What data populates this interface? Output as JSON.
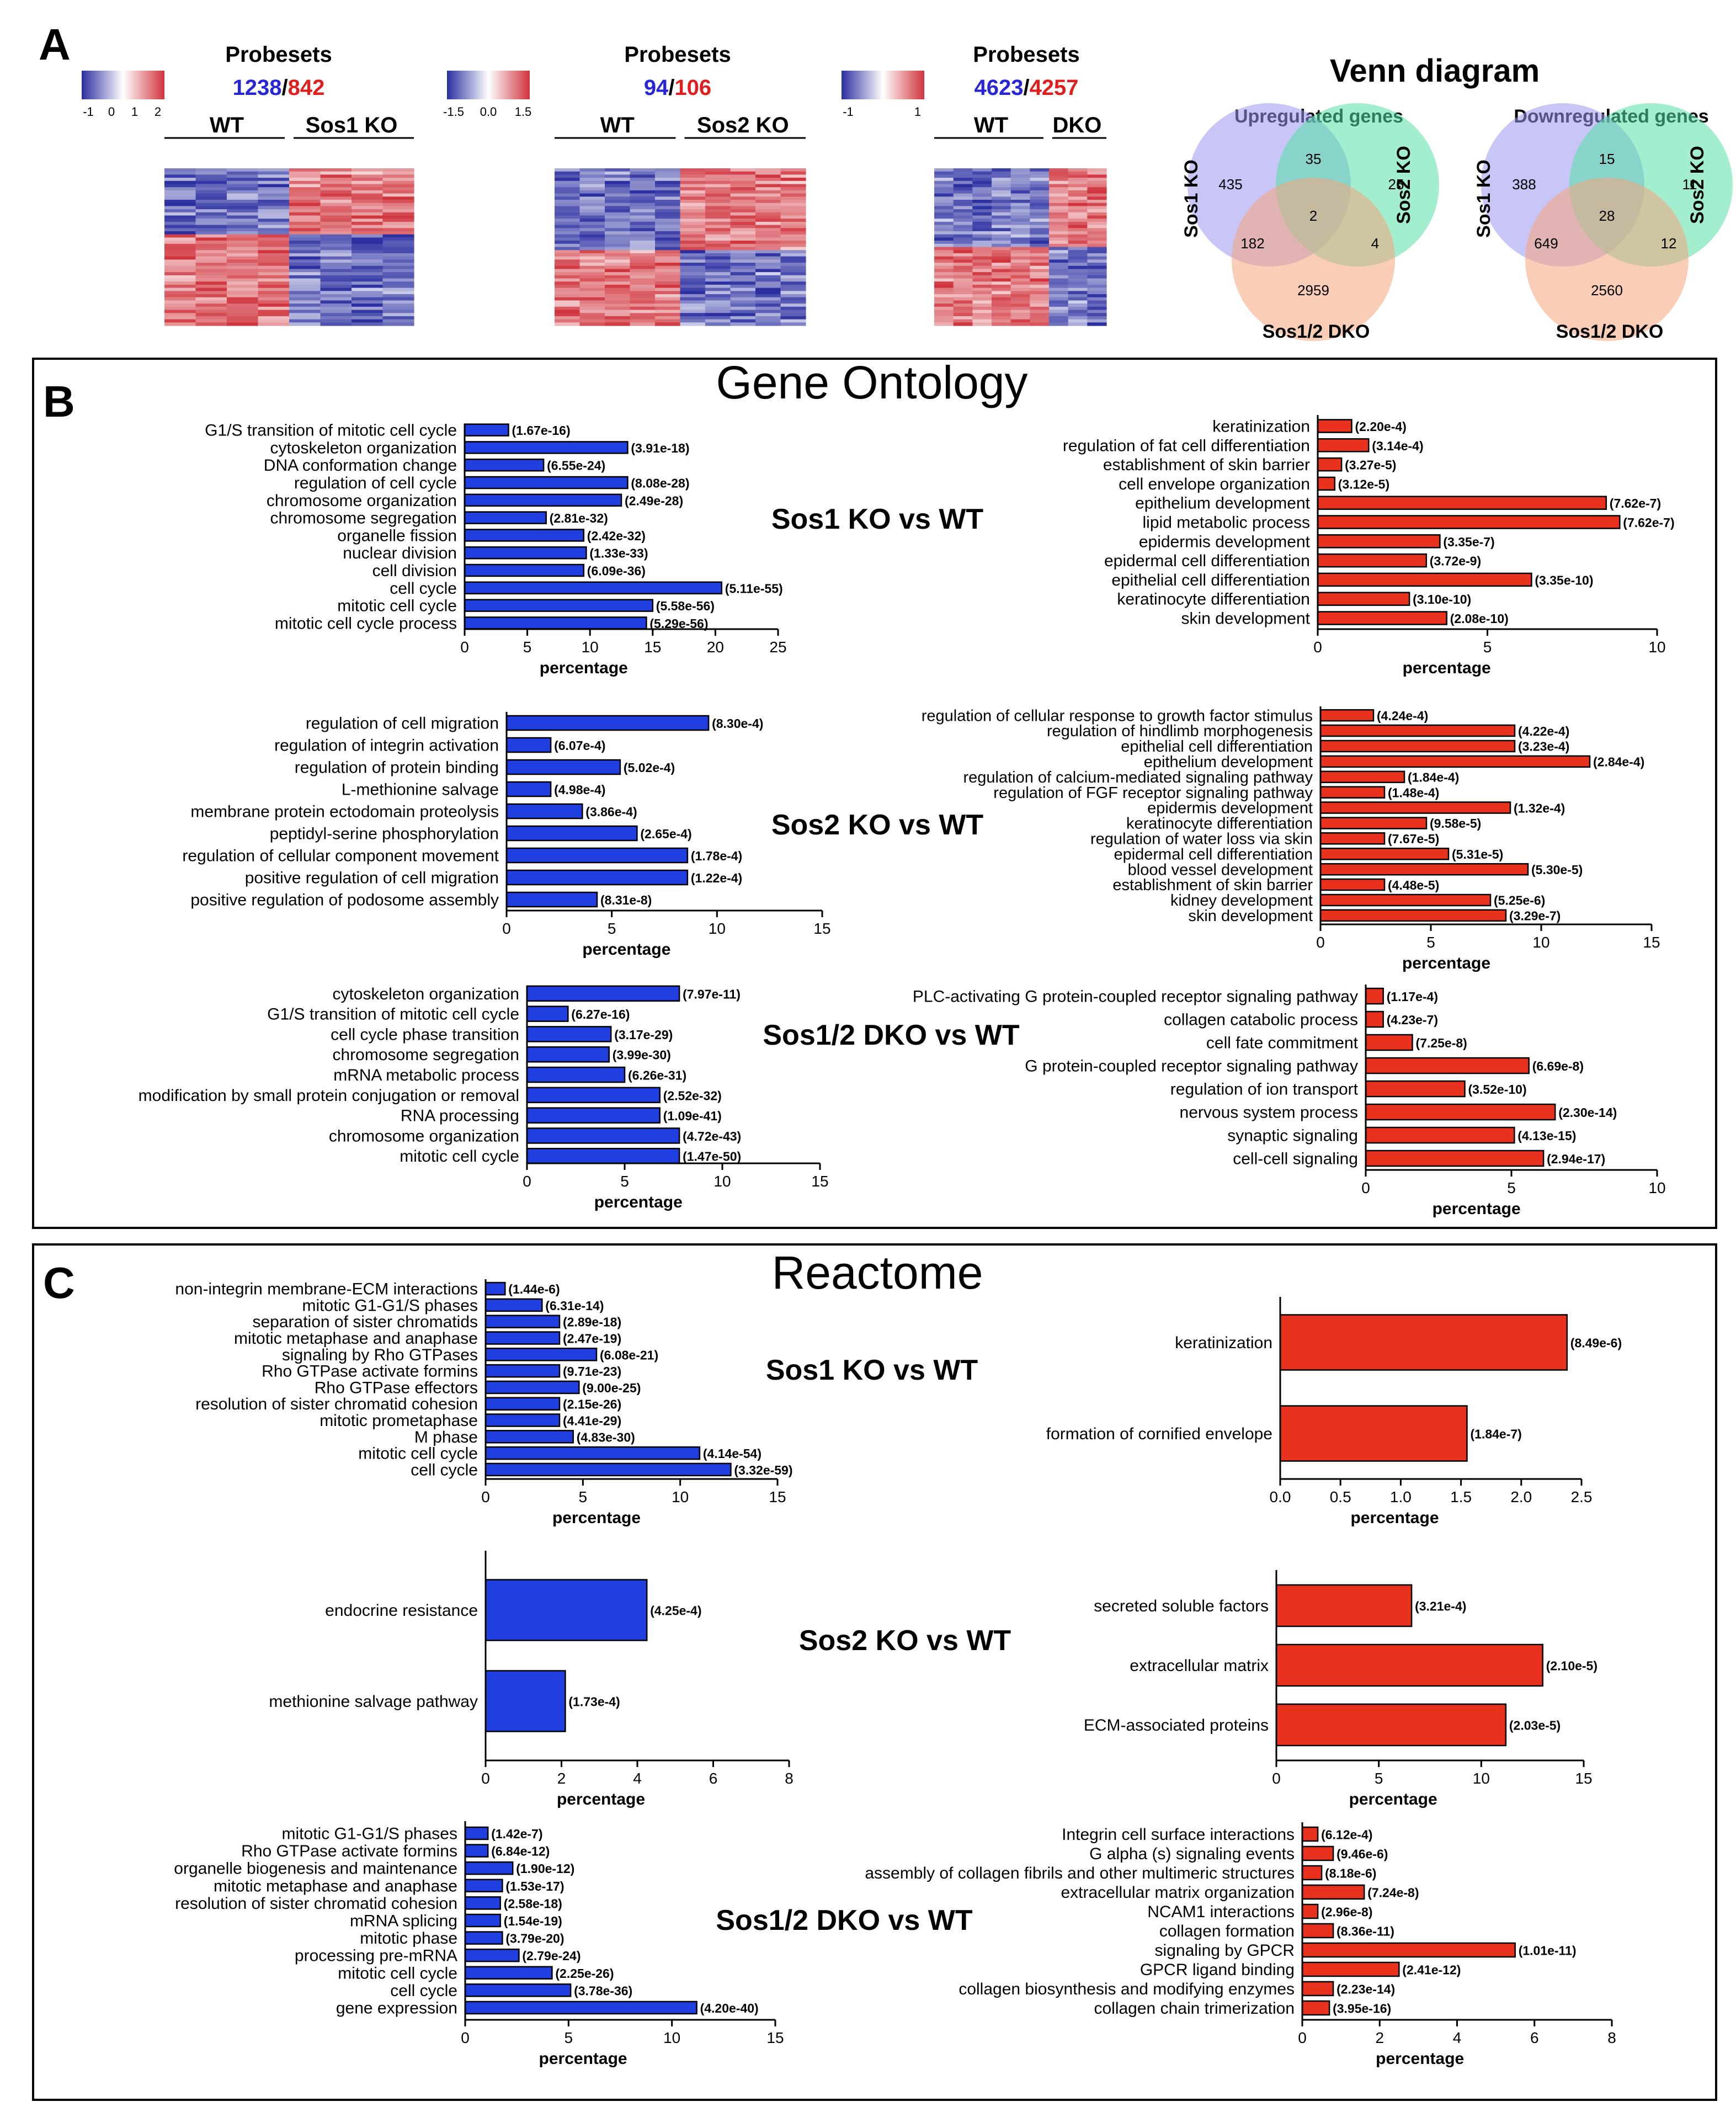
{
  "colors": {
    "blue_bar": "#1f3fe0",
    "red_bar": "#e8321e",
    "heat_blue": "#2b2fa0",
    "heat_red": "#d0343d",
    "venn_sos1": "#9b95f0",
    "venn_sos2": "#56e0a6",
    "venn_dko": "#f6a47c",
    "count_blue": "#2626d6",
    "count_red": "#e01e1e"
  },
  "panelA": {
    "letter": "A",
    "heatmaps": [
      {
        "title": "Probesets",
        "count_down": "1238",
        "sep": "/",
        "count_up": "842",
        "scale_ticks": [
          "-1",
          "0",
          "1",
          "2"
        ],
        "group_left": "WT",
        "group_right": "Sos1 KO",
        "split": 0.5,
        "top_fraction": 0.42
      },
      {
        "title": "Probesets",
        "count_down": "94",
        "sep": "/",
        "count_up": "106",
        "scale_ticks": [
          "-1.5",
          "0.0",
          "1.5"
        ],
        "group_left": "WT",
        "group_right": "Sos2 KO",
        "split": 0.5,
        "top_fraction": 0.52
      },
      {
        "title": "Probesets",
        "count_down": "4623",
        "sep": "/",
        "count_up": "4257",
        "scale_ticks": [
          "-1",
          "1"
        ],
        "group_left": "WT",
        "group_right": "DKO",
        "split": 0.66,
        "top_fraction": 0.5
      }
    ],
    "venn": {
      "title": "Venn diagram",
      "up": {
        "title": "Upregulated genes",
        "label_a": "Sos1 KO",
        "label_b": "Sos2 KO",
        "label_c": "Sos1/2 DKO",
        "a": "435",
        "ab": "35",
        "b": "25",
        "abc": "2",
        "ac": "182",
        "bc": "4",
        "c": "2959"
      },
      "down": {
        "title": "Downregulated genes",
        "label_a": "Sos1 KO",
        "label_b": "Sos2 KO",
        "label_c": "Sos1/2 DKO",
        "a": "388",
        "ab": "15",
        "b": "11",
        "abc": "28",
        "ac": "649",
        "bc": "12",
        "c": "2560"
      }
    }
  },
  "panelB": {
    "letter": "B",
    "title": "Gene Ontology",
    "rows": [
      {
        "label": "Sos1 KO vs WT"
      },
      {
        "label": "Sos2 KO vs WT"
      },
      {
        "label": "Sos1/2 DKO vs WT"
      }
    ]
  },
  "panelC": {
    "letter": "C",
    "title": "Reactome",
    "rows": [
      {
        "label": "Sos1 KO vs WT"
      },
      {
        "label": "Sos2 KO vs WT"
      },
      {
        "label": "Sos1/2 DKO vs WT"
      }
    ]
  },
  "chart_data": [
    {
      "id": "go_sos1_down",
      "type": "bar",
      "orientation": "horizontal",
      "xlabel": "percentage",
      "xlim": [
        0,
        25
      ],
      "xticks": [
        0,
        5,
        10,
        15,
        20,
        25
      ],
      "categories": [
        "G1/S transition of mitotic cell cycle",
        "cytoskeleton organization",
        "DNA conformation change",
        "regulation of cell cycle",
        "chromosome organization",
        "chromosome segregation",
        "organelle fission",
        "nuclear division",
        "cell division",
        "cell cycle",
        "mitotic cell cycle",
        "mitotic cell cycle process"
      ],
      "values": [
        3.5,
        13,
        6.3,
        13,
        12.5,
        6.5,
        9.5,
        9.7,
        9.5,
        20.5,
        15,
        14.5
      ],
      "annotations": [
        "(1.67e-16)",
        "(3.91e-18)",
        "(6.55e-24)",
        "(8.08e-28)",
        "(2.49e-28)",
        "(2.81e-32)",
        "(2.42e-32)",
        "(1.33e-33)",
        "(6.09e-36)",
        "(5.11e-55)",
        "(5.58e-56)",
        "(5.29e-56)"
      ]
    },
    {
      "id": "go_sos1_up",
      "type": "bar",
      "orientation": "horizontal",
      "xlabel": "percentage",
      "xlim": [
        0,
        10
      ],
      "xticks": [
        0,
        5,
        10
      ],
      "categories": [
        "keratinization",
        "regulation of fat cell differentiation",
        "establishment of skin barrier",
        "cell envelope organization",
        "epithelium development",
        "lipid metabolic process",
        "epidermis development",
        "epidermal cell differentiation",
        "epithelial cell differentiation",
        "keratinocyte differentiation",
        "skin development"
      ],
      "values": [
        1,
        1.5,
        0.7,
        0.5,
        8.5,
        8.9,
        3.6,
        3.2,
        6.3,
        2.7,
        3.8
      ],
      "annotations": [
        "(2.20e-4)",
        "(3.14e-4)",
        "(3.27e-5)",
        "(3.12e-5)",
        "(7.62e-7)",
        "(7.62e-7)",
        "(3.35e-7)",
        "(3.72e-9)",
        "(3.35e-10)",
        "(3.10e-10)",
        "(2.08e-10)"
      ]
    },
    {
      "id": "go_sos2_down",
      "type": "bar",
      "orientation": "horizontal",
      "xlabel": "percentage",
      "xlim": [
        0,
        15
      ],
      "xticks": [
        0,
        5,
        10,
        15
      ],
      "categories": [
        "regulation of cell migration",
        "regulation of integrin activation",
        "regulation of protein binding",
        "L-methionine salvage",
        "membrane protein ectodomain proteolysis",
        "peptidyl-serine phosphorylation",
        "regulation of cellular component movement",
        "positive regulation of cell migration",
        "positive regulation of podosome assembly"
      ],
      "values": [
        9.6,
        2.1,
        5.4,
        2.1,
        3.6,
        6.2,
        8.6,
        8.6,
        4.3
      ],
      "annotations": [
        "(8.30e-4)",
        "(6.07e-4)",
        "(5.02e-4)",
        "(4.98e-4)",
        "(3.86e-4)",
        "(2.65e-4)",
        "(1.78e-4)",
        "(1.22e-4)",
        "(8.31e-8)"
      ]
    },
    {
      "id": "go_sos2_up",
      "type": "bar",
      "orientation": "horizontal",
      "xlabel": "percentage",
      "xlim": [
        0,
        15
      ],
      "xticks": [
        0,
        5,
        10,
        15
      ],
      "categories": [
        "regulation of cellular response to growth factor stimulus",
        "regulation of hindlimb morphogenesis",
        "epithelial cell differentiation",
        "epithelium development",
        "regulation of calcium-mediated signaling pathway",
        "regulation of FGF receptor signaling pathway",
        "epidermis development",
        "keratinocyte differentiation",
        "regulation of water loss via skin",
        "epidermal cell differentiation",
        "blood vessel development",
        "establishment of skin barrier",
        "kidney development",
        "skin development"
      ],
      "values": [
        2.4,
        8.8,
        8.8,
        12.2,
        3.8,
        2.9,
        8.6,
        4.8,
        2.9,
        5.8,
        9.4,
        2.9,
        7.7,
        8.4
      ],
      "annotations": [
        "(4.24e-4)",
        "(4.22e-4)",
        "(3.23e-4)",
        "(2.84e-4)",
        "(1.84e-4)",
        "(1.48e-4)",
        "(1.32e-4)",
        "(9.58e-5)",
        "(7.67e-5)",
        "(5.31e-5)",
        "(5.30e-5)",
        "(4.48e-5)",
        "(5.25e-6)",
        "(3.29e-7)"
      ]
    },
    {
      "id": "go_dko_down",
      "type": "bar",
      "orientation": "horizontal",
      "xlabel": "percentage",
      "xlim": [
        0,
        15
      ],
      "xticks": [
        0,
        5,
        10,
        15
      ],
      "categories": [
        "cytoskeleton organization",
        "G1/S transition of mitotic cell cycle",
        "cell cycle phase transition",
        "chromosome segregation",
        "mRNA metabolic process",
        "modification by small protein conjugation or removal",
        "RNA processing",
        "chromosome organization",
        "mitotic cell cycle"
      ],
      "values": [
        7.8,
        2.1,
        4.3,
        4.2,
        5,
        6.8,
        6.8,
        7.8,
        7.8
      ],
      "annotations": [
        "(7.97e-11)",
        "(6.27e-16)",
        "(3.17e-29)",
        "(3.99e-30)",
        "(6.26e-31)",
        "(2.52e-32)",
        "(1.09e-41)",
        "(4.72e-43)",
        "(1.47e-50)"
      ]
    },
    {
      "id": "go_dko_up",
      "type": "bar",
      "orientation": "horizontal",
      "xlabel": "percentage",
      "xlim": [
        0,
        10
      ],
      "xticks": [
        0,
        5,
        10
      ],
      "categories": [
        "PLC-activating G protein-coupled receptor signaling pathway",
        "collagen catabolic process",
        "cell fate commitment",
        "G protein-coupled receptor signaling pathway",
        "regulation of ion transport",
        "nervous system process",
        "synaptic signaling",
        "cell-cell signaling"
      ],
      "values": [
        0.6,
        0.6,
        1.6,
        5.6,
        3.4,
        6.5,
        5.1,
        6.1
      ],
      "annotations": [
        "(1.17e-4)",
        "(4.23e-7)",
        "(7.25e-8)",
        "(6.69e-8)",
        "(3.52e-10)",
        "(2.30e-14)",
        "(4.13e-15)",
        "(2.94e-17)"
      ]
    },
    {
      "id": "re_sos1_down",
      "type": "bar",
      "orientation": "horizontal",
      "xlabel": "percentage",
      "xlim": [
        0,
        15
      ],
      "xticks": [
        0,
        5,
        10,
        15
      ],
      "categories": [
        "non-integrin membrane-ECM interactions",
        "mitotic G1-G1/S phases",
        "separation of sister chromatids",
        "mitotic metaphase and anaphase",
        "signaling by Rho GTPases",
        "Rho GTPase activate formins",
        "Rho GTPase effectors",
        "resolution of sister chromatid cohesion",
        "mitotic prometaphase",
        "M phase",
        "mitotic cell cycle",
        "cell cycle"
      ],
      "values": [
        1,
        2.9,
        3.8,
        3.8,
        5.7,
        3.8,
        4.8,
        3.8,
        3.8,
        4.5,
        11,
        12.6
      ],
      "annotations": [
        "(1.44e-6)",
        "(6.31e-14)",
        "(2.89e-18)",
        "(2.47e-19)",
        "(6.08e-21)",
        "(9.71e-23)",
        "(9.00e-25)",
        "(2.15e-26)",
        "(4.41e-29)",
        "(4.83e-30)",
        "(4.14e-54)",
        "(3.32e-59)"
      ]
    },
    {
      "id": "re_sos1_up",
      "type": "bar",
      "orientation": "horizontal",
      "xlabel": "percentage",
      "xlim": [
        0,
        2.5
      ],
      "xticks": [
        0.0,
        0.5,
        1.0,
        1.5,
        2.0,
        2.5
      ],
      "categories": [
        "keratinization",
        "formation of cornified envelope"
      ],
      "values": [
        2.38,
        1.55
      ],
      "annotations": [
        "(8.49e-6)",
        "(1.84e-7)"
      ]
    },
    {
      "id": "re_sos2_down",
      "type": "bar",
      "orientation": "horizontal",
      "xlabel": "percentage",
      "xlim": [
        0,
        8
      ],
      "xticks": [
        0,
        2,
        4,
        6,
        8
      ],
      "categories": [
        "endocrine resistance",
        "methionine salvage pathway"
      ],
      "values": [
        4.25,
        2.1
      ],
      "annotations": [
        "(4.25e-4)",
        "(1.73e-4)"
      ]
    },
    {
      "id": "re_sos2_up",
      "type": "bar",
      "orientation": "horizontal",
      "xlabel": "percentage",
      "xlim": [
        0,
        15
      ],
      "xticks": [
        0,
        5,
        10,
        15
      ],
      "categories": [
        "secreted soluble factors",
        "extracellular matrix",
        "ECM-associated proteins"
      ],
      "values": [
        6.6,
        13,
        11.2
      ],
      "annotations": [
        "(3.21e-4)",
        "(2.10e-5)",
        "(2.03e-5)"
      ]
    },
    {
      "id": "re_dko_down",
      "type": "bar",
      "orientation": "horizontal",
      "xlabel": "percentage",
      "xlim": [
        0,
        15
      ],
      "xticks": [
        0,
        5,
        10,
        15
      ],
      "categories": [
        "mitotic G1-G1/S phases",
        "Rho GTPase activate formins",
        "organelle biogenesis and maintenance",
        "mitotic metaphase and anaphase",
        "resolution of sister chromatid cohesion",
        "mRNA splicing",
        "mitotic phase",
        "processing pre-mRNA",
        "mitotic cell cycle",
        "cell cycle",
        "gene expression"
      ],
      "values": [
        1.1,
        1.1,
        2.3,
        1.8,
        1.7,
        1.7,
        1.8,
        2.6,
        4.2,
        5.1,
        11.2
      ],
      "annotations": [
        "(1.42e-7)",
        "(6.84e-12)",
        "(1.90e-12)",
        "(1.53e-17)",
        "(2.58e-18)",
        "(1.54e-19)",
        "(3.79e-20)",
        "(2.79e-24)",
        "(2.25e-26)",
        "(3.78e-36)",
        "(4.20e-40)"
      ]
    },
    {
      "id": "re_dko_up",
      "type": "bar",
      "orientation": "horizontal",
      "xlabel": "percentage",
      "xlim": [
        0,
        8
      ],
      "xticks": [
        0,
        2,
        4,
        6,
        8
      ],
      "categories": [
        "Integrin cell surface interactions",
        "G alpha (s) signaling events",
        "assembly of collagen fibrils and other multimeric structures",
        "extracellular matrix organization",
        "NCAM1 interactions",
        "collagen formation",
        "signaling by GPCR",
        "GPCR ligand binding",
        "collagen biosynthesis and modifying enzymes",
        "collagen chain trimerization"
      ],
      "values": [
        0.4,
        0.8,
        0.5,
        1.6,
        0.4,
        0.8,
        5.5,
        2.5,
        0.8,
        0.7
      ],
      "annotations": [
        "(6.12e-4)",
        "(9.46e-6)",
        "(8.18e-6)",
        "(7.24e-8)",
        "(2.96e-8)",
        "(8.36e-11)",
        "(1.01e-11)",
        "(2.41e-12)",
        "(2.23e-14)",
        "(3.95e-16)"
      ]
    }
  ]
}
